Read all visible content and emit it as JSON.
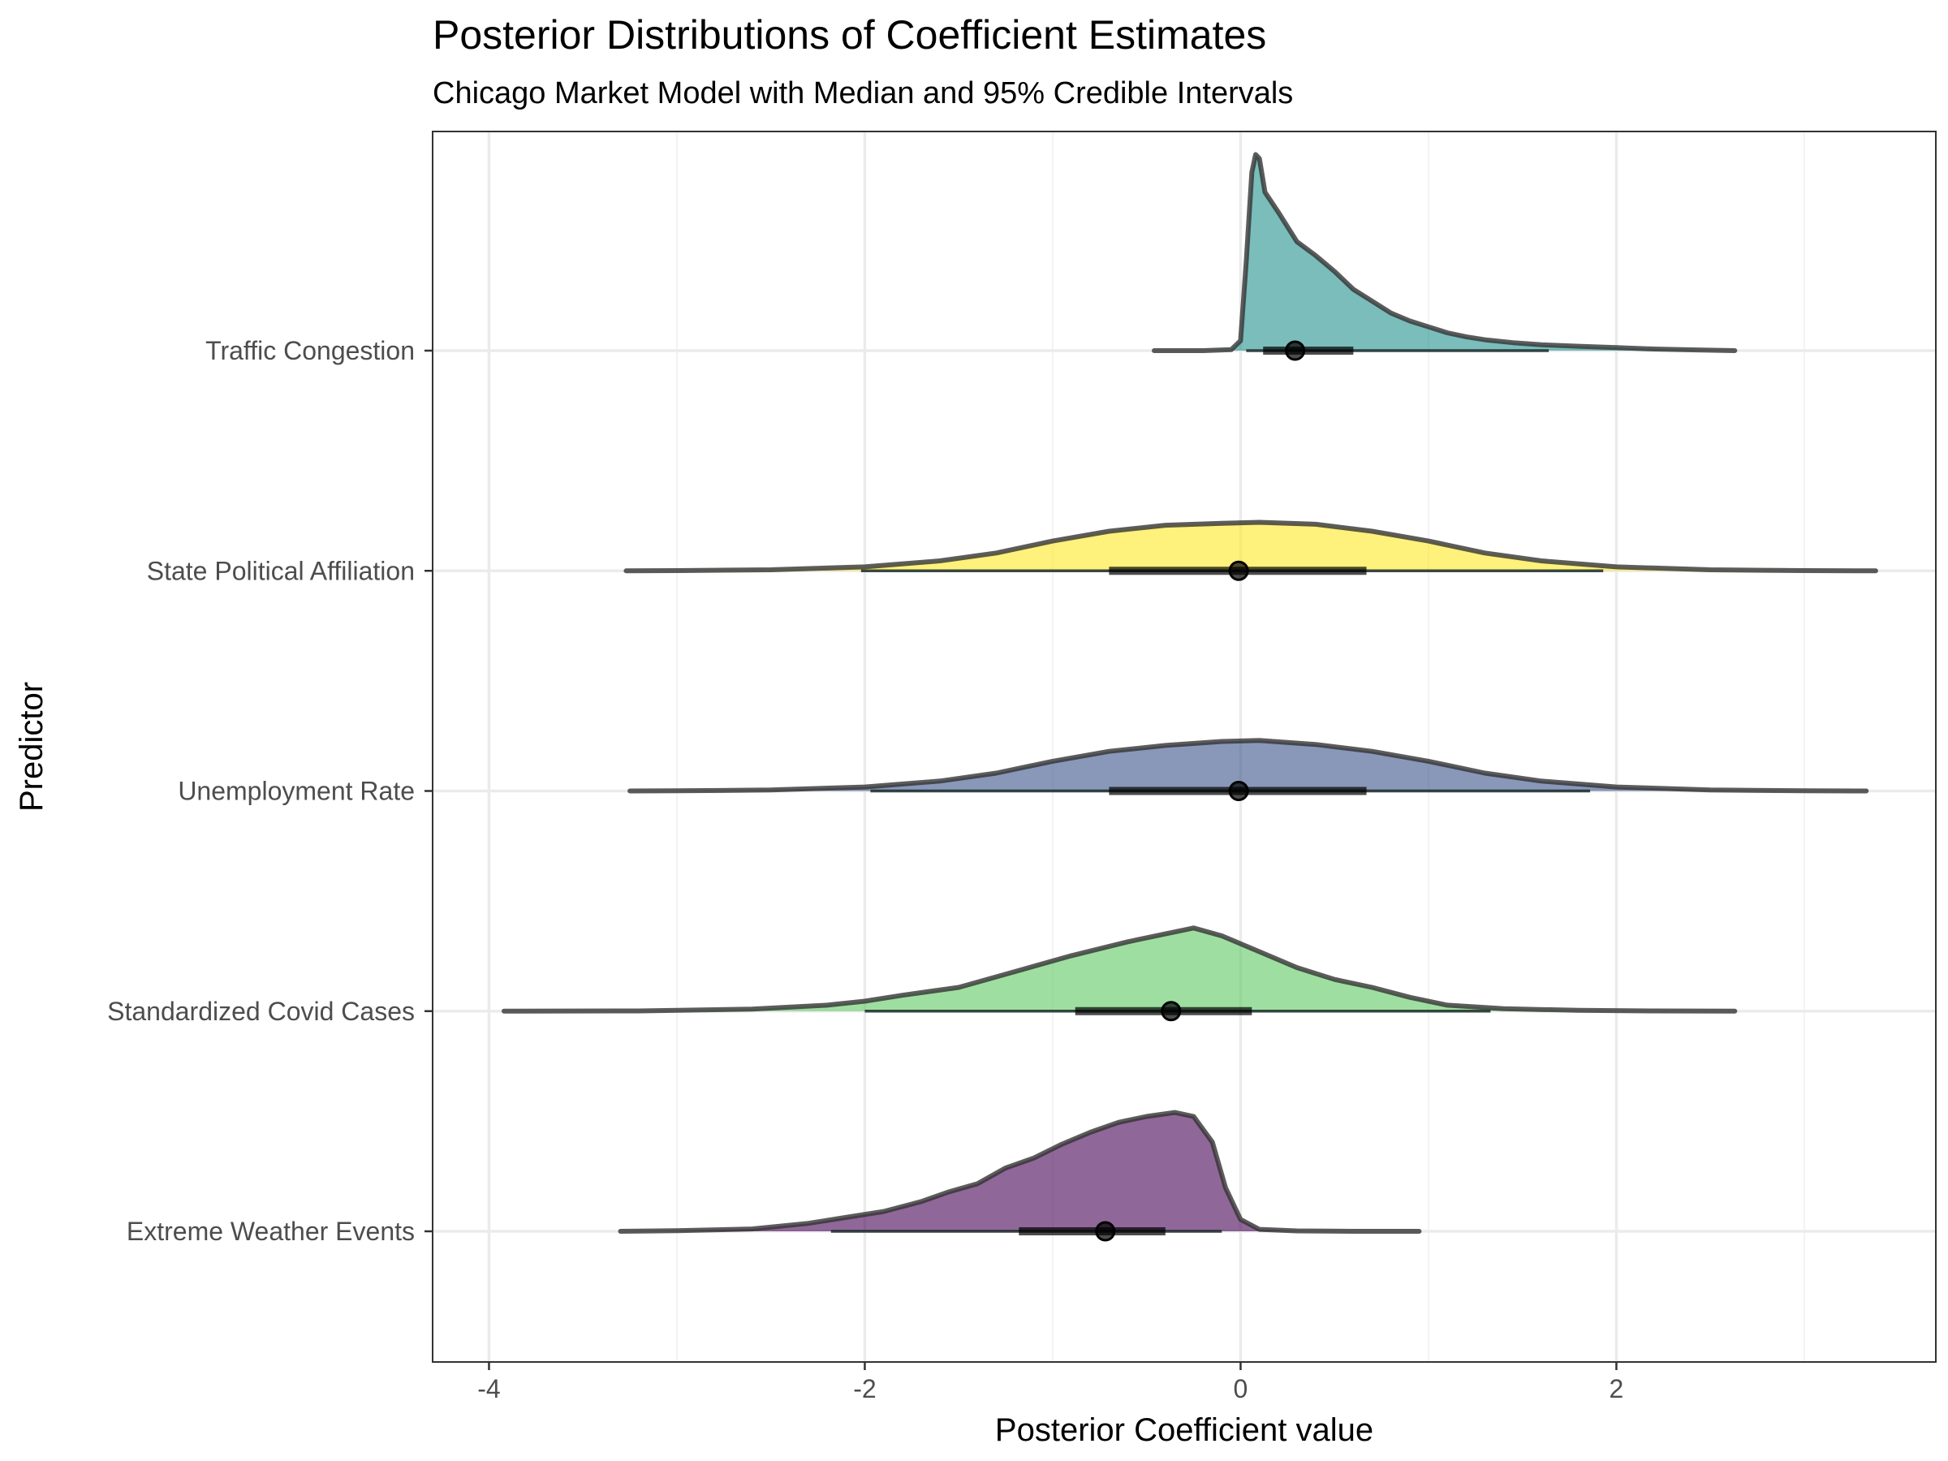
{
  "chart_data": {
    "type": "ridgeline",
    "title": "Posterior Distributions of Coefficient Estimates",
    "subtitle": "Chicago Market Model with Median and 95% Credible Intervals",
    "xlabel": "Posterior Coefficient value",
    "ylabel": "Predictor",
    "xlim": [
      -4.3,
      3.7
    ],
    "x_ticks": [
      -4,
      -2,
      0,
      2
    ],
    "x_tick_labels": [
      "-4",
      "-2",
      "0",
      "2"
    ],
    "grid": true,
    "legend": "none",
    "series": [
      {
        "name": "Extreme Weather Events",
        "color": "#440154",
        "median": -0.72,
        "ci50": [
          -1.18,
          -0.4
        ],
        "ci95": [
          -2.18,
          -0.1
        ],
        "density": [
          [
            -3.3,
            0
          ],
          [
            -3.0,
            0.003
          ],
          [
            -2.6,
            0.012
          ],
          [
            -2.3,
            0.04
          ],
          [
            -2.1,
            0.07
          ],
          [
            -1.9,
            0.1
          ],
          [
            -1.7,
            0.15
          ],
          [
            -1.55,
            0.2
          ],
          [
            -1.4,
            0.24
          ],
          [
            -1.25,
            0.32
          ],
          [
            -1.1,
            0.37
          ],
          [
            -0.95,
            0.44
          ],
          [
            -0.8,
            0.5
          ],
          [
            -0.65,
            0.55
          ],
          [
            -0.5,
            0.58
          ],
          [
            -0.35,
            0.6
          ],
          [
            -0.25,
            0.58
          ],
          [
            -0.15,
            0.45
          ],
          [
            -0.08,
            0.22
          ],
          [
            0.0,
            0.06
          ],
          [
            0.1,
            0.01
          ],
          [
            0.3,
            0.002
          ],
          [
            0.6,
            0.0
          ],
          [
            0.95,
            0.0
          ]
        ]
      },
      {
        "name": "Standardized Covid Cases",
        "color": "#5ec962",
        "median": -0.37,
        "ci50": [
          -0.88,
          0.06
        ],
        "ci95": [
          -2.0,
          1.33
        ],
        "density": [
          [
            -3.92,
            0
          ],
          [
            -3.2,
            0.001
          ],
          [
            -2.6,
            0.01
          ],
          [
            -2.2,
            0.03
          ],
          [
            -2.0,
            0.05
          ],
          [
            -1.8,
            0.08
          ],
          [
            -1.5,
            0.12
          ],
          [
            -1.2,
            0.2
          ],
          [
            -0.9,
            0.28
          ],
          [
            -0.6,
            0.35
          ],
          [
            -0.4,
            0.39
          ],
          [
            -0.25,
            0.42
          ],
          [
            -0.1,
            0.38
          ],
          [
            0.1,
            0.3
          ],
          [
            0.3,
            0.22
          ],
          [
            0.5,
            0.16
          ],
          [
            0.7,
            0.12
          ],
          [
            0.9,
            0.07
          ],
          [
            1.1,
            0.03
          ],
          [
            1.4,
            0.012
          ],
          [
            1.8,
            0.004
          ],
          [
            2.2,
            0.001
          ],
          [
            2.63,
            0
          ]
        ]
      },
      {
        "name": "Unemployment Rate",
        "color": "#3b528b",
        "median": -0.01,
        "ci50": [
          -0.7,
          0.67
        ],
        "ci95": [
          -1.97,
          1.86
        ],
        "density": [
          [
            -3.25,
            0
          ],
          [
            -3.0,
            0.001
          ],
          [
            -2.5,
            0.005
          ],
          [
            -2.0,
            0.02
          ],
          [
            -1.6,
            0.05
          ],
          [
            -1.3,
            0.09
          ],
          [
            -1.0,
            0.15
          ],
          [
            -0.7,
            0.2
          ],
          [
            -0.4,
            0.23
          ],
          [
            -0.1,
            0.25
          ],
          [
            0.1,
            0.255
          ],
          [
            0.4,
            0.235
          ],
          [
            0.7,
            0.2
          ],
          [
            1.0,
            0.15
          ],
          [
            1.3,
            0.09
          ],
          [
            1.6,
            0.05
          ],
          [
            2.0,
            0.02
          ],
          [
            2.5,
            0.005
          ],
          [
            3.0,
            0.001
          ],
          [
            3.33,
            0
          ]
        ]
      },
      {
        "name": "State Political Affiliation",
        "color": "#fde725",
        "median": -0.01,
        "ci50": [
          -0.7,
          0.67
        ],
        "ci95": [
          -2.02,
          1.93
        ],
        "density": [
          [
            -3.27,
            0
          ],
          [
            -3.0,
            0.001
          ],
          [
            -2.5,
            0.005
          ],
          [
            -2.0,
            0.02
          ],
          [
            -1.6,
            0.05
          ],
          [
            -1.3,
            0.09
          ],
          [
            -1.0,
            0.15
          ],
          [
            -0.7,
            0.2
          ],
          [
            -0.4,
            0.23
          ],
          [
            -0.1,
            0.24
          ],
          [
            0.1,
            0.245
          ],
          [
            0.4,
            0.235
          ],
          [
            0.7,
            0.2
          ],
          [
            1.0,
            0.15
          ],
          [
            1.3,
            0.09
          ],
          [
            1.6,
            0.05
          ],
          [
            2.0,
            0.02
          ],
          [
            2.5,
            0.005
          ],
          [
            3.0,
            0.001
          ],
          [
            3.38,
            0
          ]
        ]
      },
      {
        "name": "Traffic Congestion",
        "color": "#21918c",
        "median": 0.29,
        "ci50": [
          0.12,
          0.6
        ],
        "ci95": [
          0.03,
          1.64
        ],
        "density": [
          [
            -0.46,
            0
          ],
          [
            -0.2,
            0
          ],
          [
            -0.05,
            0.005
          ],
          [
            0.0,
            0.05
          ],
          [
            0.03,
            0.45
          ],
          [
            0.06,
            0.9
          ],
          [
            0.08,
            0.99
          ],
          [
            0.1,
            0.97
          ],
          [
            0.13,
            0.8
          ],
          [
            0.2,
            0.7
          ],
          [
            0.3,
            0.55
          ],
          [
            0.4,
            0.48
          ],
          [
            0.5,
            0.4
          ],
          [
            0.6,
            0.31
          ],
          [
            0.7,
            0.25
          ],
          [
            0.8,
            0.19
          ],
          [
            0.9,
            0.15
          ],
          [
            1.0,
            0.12
          ],
          [
            1.1,
            0.09
          ],
          [
            1.2,
            0.07
          ],
          [
            1.3,
            0.055
          ],
          [
            1.45,
            0.04
          ],
          [
            1.6,
            0.03
          ],
          [
            1.8,
            0.022
          ],
          [
            2.0,
            0.015
          ],
          [
            2.2,
            0.008
          ],
          [
            2.4,
            0.004
          ],
          [
            2.63,
            0
          ]
        ]
      }
    ]
  }
}
